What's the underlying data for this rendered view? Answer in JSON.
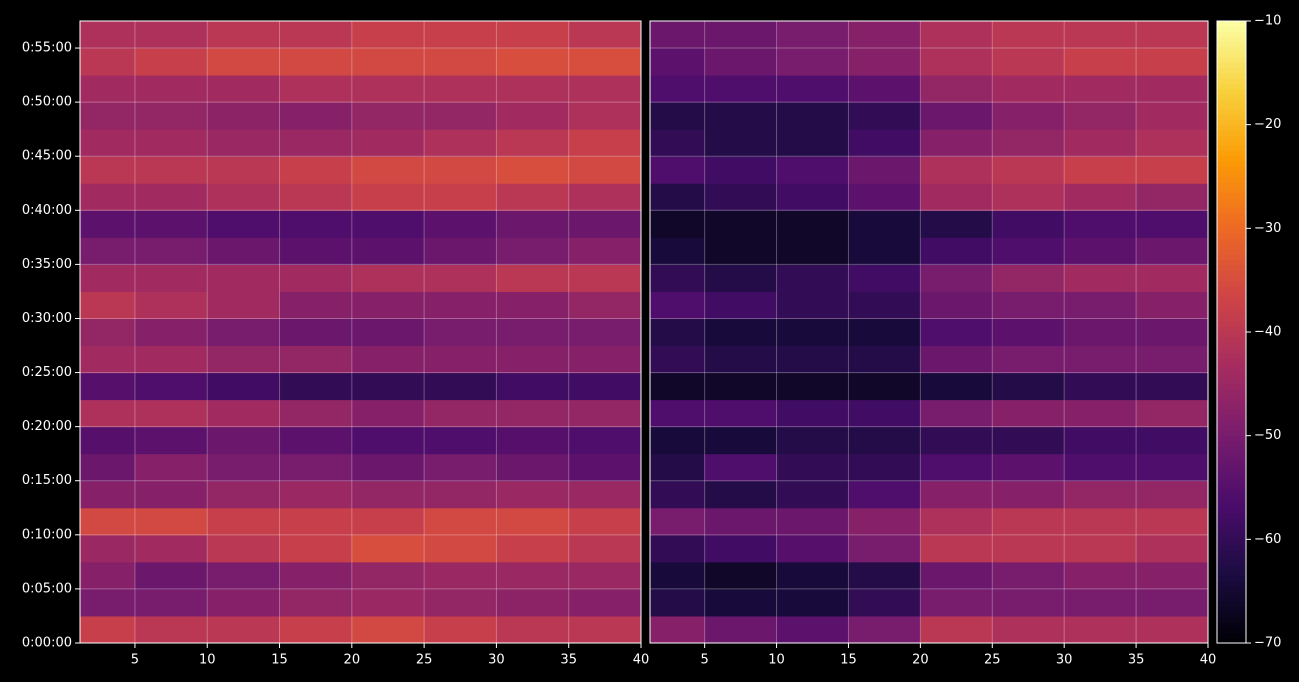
{
  "chart_data": [
    {
      "type": "heatmap",
      "x_edges": [
        1.2,
        5,
        10,
        15,
        20,
        25,
        30,
        35,
        40
      ],
      "y_edges": [
        0,
        150,
        300,
        450,
        600,
        750,
        900,
        1050,
        1200,
        1350,
        1500,
        1650,
        1800,
        1950,
        2100,
        2250,
        2400,
        2550,
        2700,
        2850,
        3000,
        3150,
        3300,
        3450
      ],
      "values": [
        [
          -38,
          -40,
          -40,
          -38,
          -36,
          -38,
          -40,
          -40
        ],
        [
          -50,
          -50,
          -48,
          -46,
          -45,
          -46,
          -47,
          -48
        ],
        [
          -48,
          -52,
          -50,
          -48,
          -46,
          -45,
          -45,
          -45
        ],
        [
          -45,
          -44,
          -40,
          -38,
          -35,
          -36,
          -38,
          -40
        ],
        [
          -36,
          -36,
          -38,
          -38,
          -38,
          -36,
          -36,
          -38
        ],
        [
          -48,
          -48,
          -46,
          -45,
          -46,
          -46,
          -45,
          -45
        ],
        [
          -52,
          -48,
          -50,
          -50,
          -52,
          -50,
          -52,
          -54
        ],
        [
          -55,
          -54,
          -52,
          -54,
          -56,
          -56,
          -55,
          -56
        ],
        [
          -42,
          -42,
          -44,
          -46,
          -48,
          -46,
          -46,
          -46
        ],
        [
          -55,
          -56,
          -58,
          -60,
          -60,
          -60,
          -58,
          -58
        ],
        [
          -44,
          -44,
          -46,
          -46,
          -48,
          -48,
          -48,
          -48
        ],
        [
          -46,
          -48,
          -50,
          -52,
          -52,
          -50,
          -50,
          -50
        ],
        [
          -40,
          -42,
          -44,
          -48,
          -48,
          -48,
          -48,
          -46
        ],
        [
          -44,
          -44,
          -44,
          -44,
          -42,
          -42,
          -40,
          -40
        ],
        [
          -50,
          -50,
          -52,
          -54,
          -54,
          -52,
          -50,
          -48
        ],
        [
          -54,
          -54,
          -56,
          -56,
          -56,
          -54,
          -52,
          -52
        ],
        [
          -44,
          -44,
          -42,
          -40,
          -38,
          -38,
          -40,
          -42
        ],
        [
          -40,
          -40,
          -40,
          -38,
          -36,
          -36,
          -35,
          -36
        ],
        [
          -44,
          -44,
          -45,
          -45,
          -44,
          -42,
          -40,
          -38
        ],
        [
          -46,
          -46,
          -47,
          -48,
          -46,
          -46,
          -44,
          -42
        ],
        [
          -44,
          -44,
          -44,
          -42,
          -42,
          -42,
          -42,
          -42
        ],
        [
          -40,
          -38,
          -36,
          -36,
          -36,
          -36,
          -35,
          -35
        ],
        [
          -42,
          -42,
          -40,
          -40,
          -38,
          -38,
          -38,
          -40
        ]
      ],
      "xlim": [
        1.2,
        40
      ],
      "xticks": [
        5,
        10,
        15,
        20,
        25,
        30,
        35,
        40
      ],
      "ylim": [
        0,
        3450
      ],
      "yticks": [
        {
          "value": 0,
          "label": "0:00:00"
        },
        {
          "value": 300,
          "label": "0:05:00"
        },
        {
          "value": 600,
          "label": "0:10:00"
        },
        {
          "value": 900,
          "label": "0:15:00"
        },
        {
          "value": 1200,
          "label": "0:20:00"
        },
        {
          "value": 1500,
          "label": "0:25:00"
        },
        {
          "value": 1800,
          "label": "0:30:00"
        },
        {
          "value": 2100,
          "label": "0:35:00"
        },
        {
          "value": 2400,
          "label": "0:40:00"
        },
        {
          "value": 2700,
          "label": "0:45:00"
        },
        {
          "value": 3000,
          "label": "0:50:00"
        },
        {
          "value": 3300,
          "label": "0:55:00"
        }
      ],
      "grid": true
    },
    {
      "type": "heatmap",
      "x_edges": [
        1.2,
        5,
        10,
        15,
        20,
        25,
        30,
        35,
        40
      ],
      "y_edges": [
        0,
        150,
        300,
        450,
        600,
        750,
        900,
        1050,
        1200,
        1350,
        1500,
        1650,
        1800,
        1950,
        2100,
        2250,
        2400,
        2550,
        2700,
        2850,
        3000,
        3150,
        3300,
        3450
      ],
      "values": [
        [
          -48,
          -52,
          -54,
          -50,
          -40,
          -42,
          -42,
          -42
        ],
        [
          -62,
          -64,
          -64,
          -60,
          -50,
          -50,
          -50,
          -50
        ],
        [
          -64,
          -66,
          -64,
          -62,
          -52,
          -50,
          -48,
          -48
        ],
        [
          -60,
          -58,
          -55,
          -50,
          -40,
          -40,
          -40,
          -42
        ],
        [
          -50,
          -52,
          -52,
          -48,
          -42,
          -40,
          -40,
          -40
        ],
        [
          -60,
          -62,
          -60,
          -56,
          -48,
          -48,
          -46,
          -46
        ],
        [
          -62,
          -56,
          -60,
          -60,
          -56,
          -54,
          -56,
          -56
        ],
        [
          -64,
          -64,
          -62,
          -62,
          -60,
          -60,
          -58,
          -58
        ],
        [
          -56,
          -56,
          -58,
          -58,
          -50,
          -48,
          -48,
          -46
        ],
        [
          -66,
          -66,
          -66,
          -66,
          -64,
          -62,
          -60,
          -60
        ],
        [
          -60,
          -62,
          -62,
          -62,
          -52,
          -50,
          -50,
          -50
        ],
        [
          -62,
          -64,
          -64,
          -64,
          -56,
          -54,
          -52,
          -52
        ],
        [
          -56,
          -58,
          -60,
          -60,
          -52,
          -50,
          -50,
          -48
        ],
        [
          -60,
          -62,
          -60,
          -58,
          -50,
          -46,
          -44,
          -44
        ],
        [
          -64,
          -66,
          -66,
          -64,
          -58,
          -56,
          -54,
          -52
        ],
        [
          -66,
          -66,
          -66,
          -64,
          -62,
          -58,
          -56,
          -56
        ],
        [
          -62,
          -60,
          -58,
          -54,
          -44,
          -42,
          -44,
          -46
        ],
        [
          -56,
          -58,
          -56,
          -52,
          -42,
          -40,
          -38,
          -38
        ],
        [
          -60,
          -62,
          -62,
          -58,
          -48,
          -46,
          -44,
          -42
        ],
        [
          -62,
          -62,
          -62,
          -60,
          -52,
          -48,
          -46,
          -44
        ],
        [
          -56,
          -56,
          -56,
          -54,
          -46,
          -44,
          -44,
          -44
        ],
        [
          -54,
          -52,
          -50,
          -48,
          -42,
          -40,
          -38,
          -38
        ],
        [
          -52,
          -52,
          -50,
          -48,
          -42,
          -40,
          -40,
          -40
        ]
      ],
      "xlim": [
        1.2,
        40
      ],
      "xticks": [
        5,
        10,
        15,
        20,
        25,
        30,
        35,
        40
      ],
      "ylim": [
        0,
        3450
      ],
      "grid": true,
      "colorbar": {
        "lim": [
          -70,
          -10
        ],
        "ticks": [
          {
            "value": -70,
            "label": "−70"
          },
          {
            "value": -60,
            "label": "−60"
          },
          {
            "value": -50,
            "label": "−50"
          },
          {
            "value": -40,
            "label": "−40"
          },
          {
            "value": -30,
            "label": "−30"
          },
          {
            "value": -20,
            "label": "−20"
          },
          {
            "value": -10,
            "label": "−10"
          }
        ],
        "colormap": [
          "#000004",
          "#1b0c41",
          "#4a0c6b",
          "#781c6d",
          "#a52c60",
          "#cf4446",
          "#ed6925",
          "#fb9b06",
          "#f7d13d",
          "#fcffa4"
        ]
      }
    }
  ]
}
